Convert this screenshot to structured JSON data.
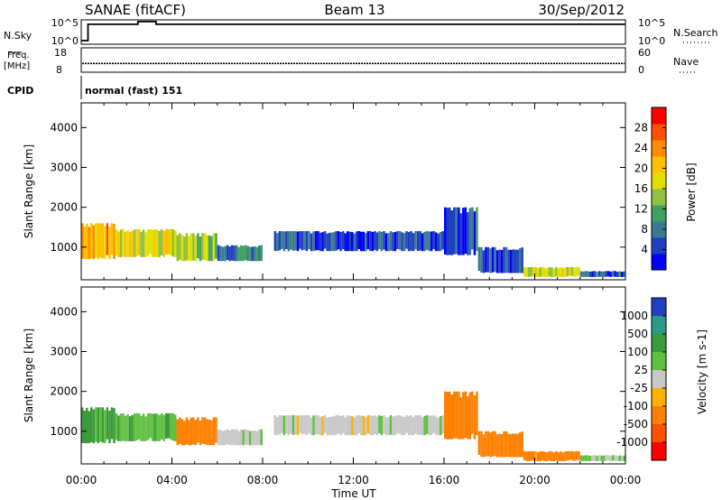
{
  "header": {
    "station": "SANAE (fitACF)",
    "beam": "Beam 13",
    "date": "30/Sep/2012"
  },
  "noise_panel": {
    "left_label": "N.Sky",
    "right_label": "N.Search",
    "left_ticks": [
      "10^5",
      "10^0"
    ],
    "right_ticks": [
      "10^5",
      "10^0"
    ]
  },
  "freq_panel": {
    "left_label_1": "Freq.",
    "left_label_2": "[MHz]",
    "right_label": "Nave",
    "left_ticks": [
      "18",
      "8"
    ],
    "right_ticks": [
      "60",
      "0"
    ]
  },
  "cpid_panel": {
    "label": "CPID",
    "text": "normal (fast) 151"
  },
  "chart_data": {
    "type": "heatmap",
    "x_axis": {
      "label": "Time UT",
      "range_hours": [
        0,
        24
      ],
      "ticks": [
        "00:00",
        "04:00",
        "08:00",
        "12:00",
        "16:00",
        "20:00",
        "00:00"
      ]
    },
    "power_panel": {
      "ylabel": "Slant Range [km]",
      "ylim": [
        180,
        4620
      ],
      "yticks": [
        1000,
        2000,
        3000,
        4000
      ],
      "colorbar": {
        "label": "Power [dB]",
        "range": [
          0,
          32
        ],
        "ticks": [
          "4",
          "8",
          "12",
          "16",
          "20",
          "24",
          "28"
        ],
        "colors": [
          "#0000ff",
          "#1f3fbf",
          "#3a7a90",
          "#40a060",
          "#90c040",
          "#e0e000",
          "#ffc000",
          "#ff8c00",
          "#ff5000",
          "#ff0000"
        ]
      }
    },
    "velocity_panel": {
      "ylabel": "Slant Range [km]",
      "ylim": [
        180,
        4620
      ],
      "yticks": [
        1000,
        2000,
        3000,
        4000
      ],
      "colorbar": {
        "label": "Velocity [m s-1]",
        "ticks": [
          "1000",
          "500",
          "100",
          "25",
          "-25",
          "-100",
          "-500",
          "-1000"
        ],
        "colors": [
          "#2040c0",
          "#2a9a8a",
          "#3c9a3c",
          "#60c040",
          "#c8c8c8",
          "#ffb000",
          "#ff8000",
          "#ff5000",
          "#ff0000"
        ]
      }
    },
    "echo_regions": [
      {
        "t0": 0.0,
        "t1": 1.5,
        "r0": 700,
        "r1": 1600,
        "power": 22,
        "velocity": 120
      },
      {
        "t0": 1.5,
        "t1": 4.2,
        "r0": 750,
        "r1": 1450,
        "power": 18,
        "velocity": 80
      },
      {
        "t0": 4.2,
        "t1": 6.0,
        "r0": 650,
        "r1": 1350,
        "power": 14,
        "velocity": -150
      },
      {
        "t0": 6.0,
        "t1": 8.0,
        "r0": 650,
        "r1": 1050,
        "power": 9,
        "velocity": 5
      },
      {
        "t0": 8.5,
        "t1": 16.0,
        "r0": 900,
        "r1": 1400,
        "power": 5,
        "velocity": 0
      },
      {
        "t0": 16.0,
        "t1": 17.5,
        "r0": 800,
        "r1": 2000,
        "power": 6,
        "velocity": -400
      },
      {
        "t0": 17.5,
        "t1": 19.5,
        "r0": 350,
        "r1": 1000,
        "power": 5,
        "velocity": -300
      },
      {
        "t0": 19.5,
        "t1": 22.0,
        "r0": 250,
        "r1": 500,
        "power": 17,
        "velocity": -120
      },
      {
        "t0": 22.0,
        "t1": 24.0,
        "r0": 250,
        "r1": 400,
        "power": 6,
        "velocity": 30
      }
    ],
    "noise_sky": [
      {
        "t0": 0.0,
        "t1": 0.3,
        "level": 0.15
      },
      {
        "t0": 0.3,
        "t1": 2.5,
        "level": 0.82
      },
      {
        "t0": 2.5,
        "t1": 3.3,
        "level": 0.93
      },
      {
        "t0": 3.3,
        "t1": 24.0,
        "level": 0.82
      }
    ],
    "freq_mhz": 11.6
  }
}
